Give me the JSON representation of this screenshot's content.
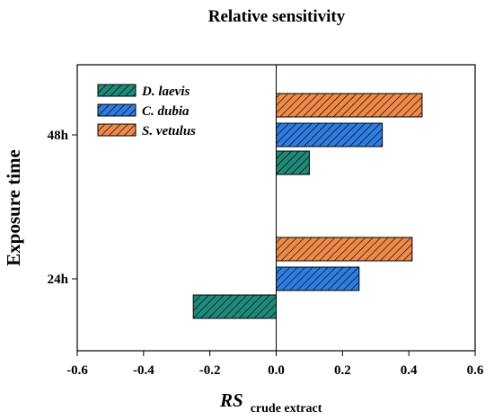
{
  "chart_data": {
    "type": "bar",
    "orientation": "horizontal",
    "title": "Relative sensitivity",
    "xlabel": "RS",
    "xlabel_subscript": "crude extract",
    "ylabel": "Exposure time",
    "xlim": [
      -0.6,
      0.6
    ],
    "xticks": [
      "-0.6",
      "-0.4",
      "-0.2",
      "0.0",
      "0.2",
      "0.4",
      "0.6"
    ],
    "categories": [
      "24h",
      "48h"
    ],
    "series": [
      {
        "name": "D. laevis",
        "color": "#1f8a7a",
        "values": [
          -0.25,
          0.1
        ]
      },
      {
        "name": "C. dubia",
        "color": "#2f7de1",
        "values": [
          0.25,
          0.32
        ]
      },
      {
        "name": "S. vetulus",
        "color": "#f08a4b",
        "values": [
          0.41,
          0.44
        ]
      }
    ],
    "pattern": "diagonal hatch",
    "zero_line": true,
    "grid": false,
    "legend_position": "top-left"
  }
}
